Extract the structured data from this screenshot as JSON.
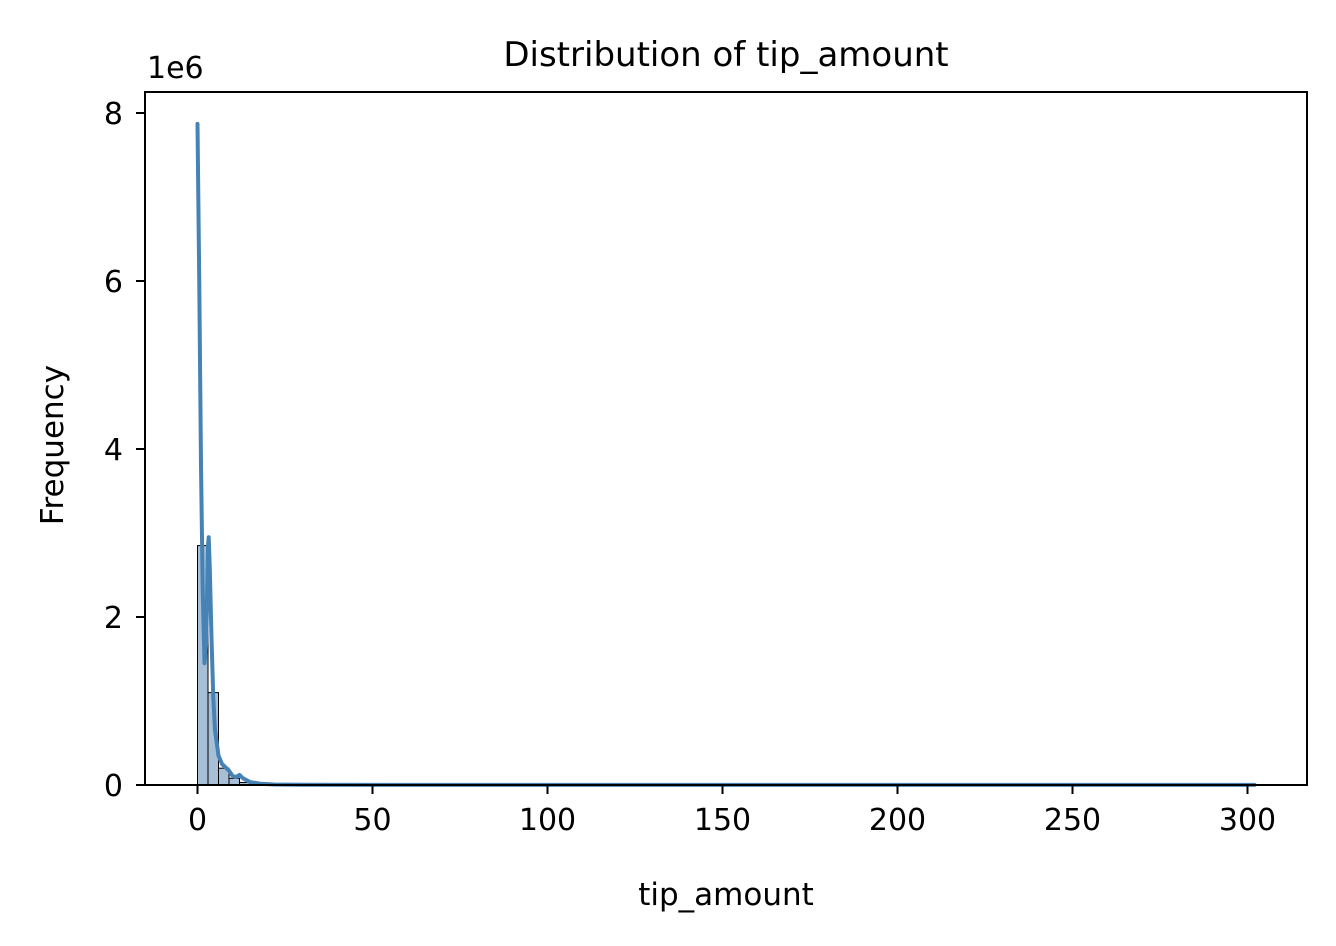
{
  "chart_data": {
    "type": "bar",
    "title": "Distribution of tip_amount",
    "xlabel": "tip_amount",
    "ylabel": "Frequency",
    "y_offset_label": "1e6",
    "y_scale": 1000000,
    "xlim": [
      -15,
      317
    ],
    "ylim": [
      0,
      8250000
    ],
    "x_ticks": [
      0,
      50,
      100,
      150,
      200,
      250,
      300
    ],
    "x_tick_labels": [
      "0",
      "50",
      "100",
      "150",
      "200",
      "250",
      "300"
    ],
    "y_ticks": [
      0,
      2000000,
      4000000,
      6000000,
      8000000
    ],
    "y_tick_labels": [
      "0",
      "2",
      "4",
      "6",
      "8"
    ],
    "grid": false,
    "histogram": {
      "color": "#a7bfd7",
      "edge_color": "#000000",
      "bins": [
        {
          "x0": 0,
          "x1": 3,
          "count": 2850000
        },
        {
          "x0": 3,
          "x1": 6,
          "count": 1100000
        },
        {
          "x0": 6,
          "x1": 9,
          "count": 200000
        },
        {
          "x0": 9,
          "x1": 12,
          "count": 80000
        },
        {
          "x0": 12,
          "x1": 15,
          "count": 30000
        },
        {
          "x0": 15,
          "x1": 18,
          "count": 10000
        }
      ]
    },
    "kde": {
      "color": "#4682b4",
      "points": [
        [
          0.0,
          7870000
        ],
        [
          0.5,
          6000000
        ],
        [
          1.0,
          3800000
        ],
        [
          1.5,
          2300000
        ],
        [
          2.0,
          1450000
        ],
        [
          2.5,
          1700000
        ],
        [
          3.0,
          2850000
        ],
        [
          3.2,
          2950000
        ],
        [
          3.5,
          2600000
        ],
        [
          4.0,
          1750000
        ],
        [
          4.5,
          1050000
        ],
        [
          5.0,
          650000
        ],
        [
          6.0,
          350000
        ],
        [
          7.0,
          250000
        ],
        [
          8.0,
          210000
        ],
        [
          9.0,
          170000
        ],
        [
          10.0,
          110000
        ],
        [
          11.0,
          95000
        ],
        [
          12.0,
          120000
        ],
        [
          13.0,
          80000
        ],
        [
          15.0,
          35000
        ],
        [
          18.0,
          15000
        ],
        [
          22.0,
          6000
        ],
        [
          30.0,
          3000
        ],
        [
          50.0,
          2000
        ],
        [
          100.0,
          1500
        ],
        [
          150.0,
          1500
        ],
        [
          200.0,
          1500
        ],
        [
          250.0,
          1500
        ],
        [
          302.0,
          1500
        ]
      ]
    }
  }
}
